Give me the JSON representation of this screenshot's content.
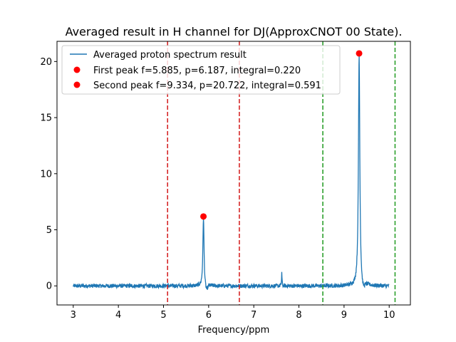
{
  "chart_data": {
    "type": "line",
    "title": "Averaged result in H channel for DJ(ApproxCNOT 00 State).",
    "xlabel": "Frequency/ppm",
    "ylabel": "",
    "xlim": [
      2.64,
      10.47
    ],
    "ylim": [
      -1.7,
      21.8
    ],
    "xticks": [
      3,
      4,
      5,
      6,
      7,
      8,
      9,
      10
    ],
    "yticks": [
      0,
      5,
      10,
      15,
      20
    ],
    "grid": false,
    "legend_position": "upper-left",
    "colors": {
      "spectrum": "#1f77b4",
      "peaks": "#ff0000",
      "red_lines": "#d62728",
      "green_lines": "#2ca02c"
    },
    "series": [
      {
        "name": "Averaged proton spectrum result",
        "kind": "line",
        "x_range": [
          3.0,
          10.0
        ],
        "baseline": 0.0,
        "noise_amplitude": 0.18,
        "features": [
          {
            "type": "lorentzian",
            "center": 5.885,
            "height": 6.187,
            "width": 0.015
          },
          {
            "type": "dip",
            "center": 5.95,
            "depth": -0.5,
            "width": 0.04
          },
          {
            "type": "lorentzian",
            "center": 7.62,
            "height": 1.2,
            "width": 0.006
          },
          {
            "type": "lorentzian",
            "center": 9.334,
            "height": 20.722,
            "width": 0.018
          },
          {
            "type": "dip",
            "center": 9.42,
            "depth": -0.6,
            "width": 0.05
          }
        ]
      },
      {
        "name": "First peak f=5.885, p=6.187, integral=0.220",
        "kind": "scatter",
        "x": 5.885,
        "y": 6.187
      },
      {
        "name": "Second peak f=9.334, p=20.722, integral=0.591",
        "kind": "scatter",
        "x": 9.334,
        "y": 20.722
      }
    ],
    "vlines": [
      {
        "x": 5.09,
        "color": "red"
      },
      {
        "x": 6.68,
        "color": "red"
      },
      {
        "x": 8.53,
        "color": "green"
      },
      {
        "x": 10.13,
        "color": "green"
      }
    ]
  }
}
